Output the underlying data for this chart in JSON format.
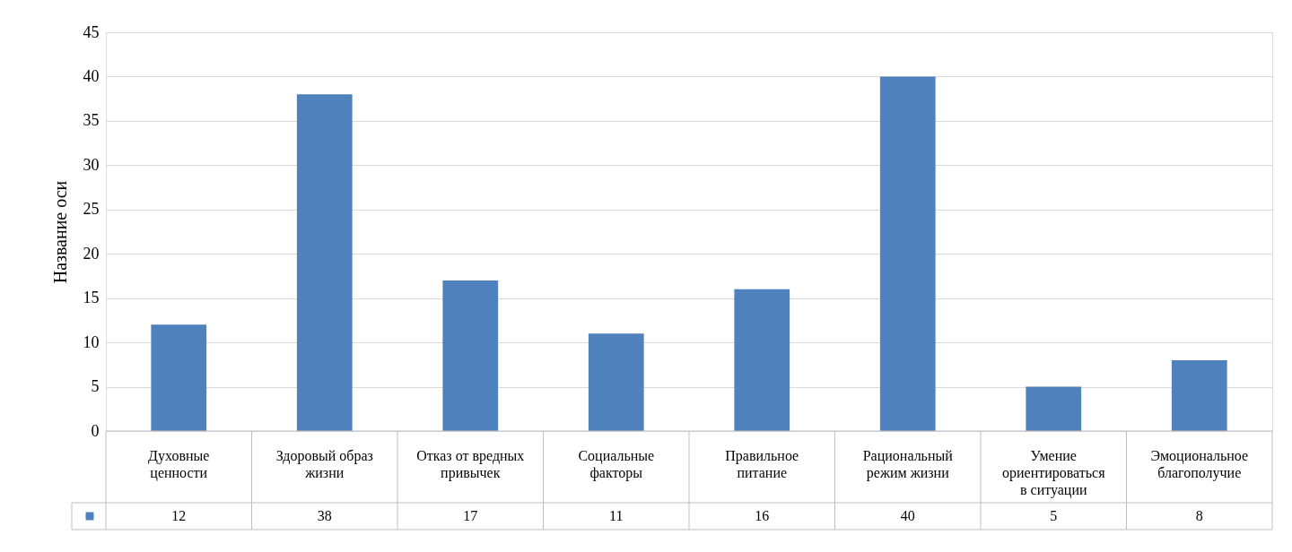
{
  "chart_data": {
    "type": "bar",
    "ylabel": "Название оси",
    "categories": [
      "Духовные ценности",
      "Здоровый образ жизни",
      "Отказ от вредных привычек",
      "Социальные факторы",
      "Правильное питание",
      "Рациональный режим жизни",
      "Умение ориентироваться в ситуации",
      "Эмоциональное благополучие"
    ],
    "series": [
      {
        "color": "#4f81bd",
        "values": [
          12,
          38,
          17,
          11,
          16,
          40,
          5,
          8
        ]
      }
    ],
    "ylim": [
      0,
      45
    ],
    "yticks": [
      0,
      5,
      10,
      15,
      20,
      25,
      30,
      35,
      40,
      45
    ],
    "grid": "y",
    "data_labels": true
  }
}
